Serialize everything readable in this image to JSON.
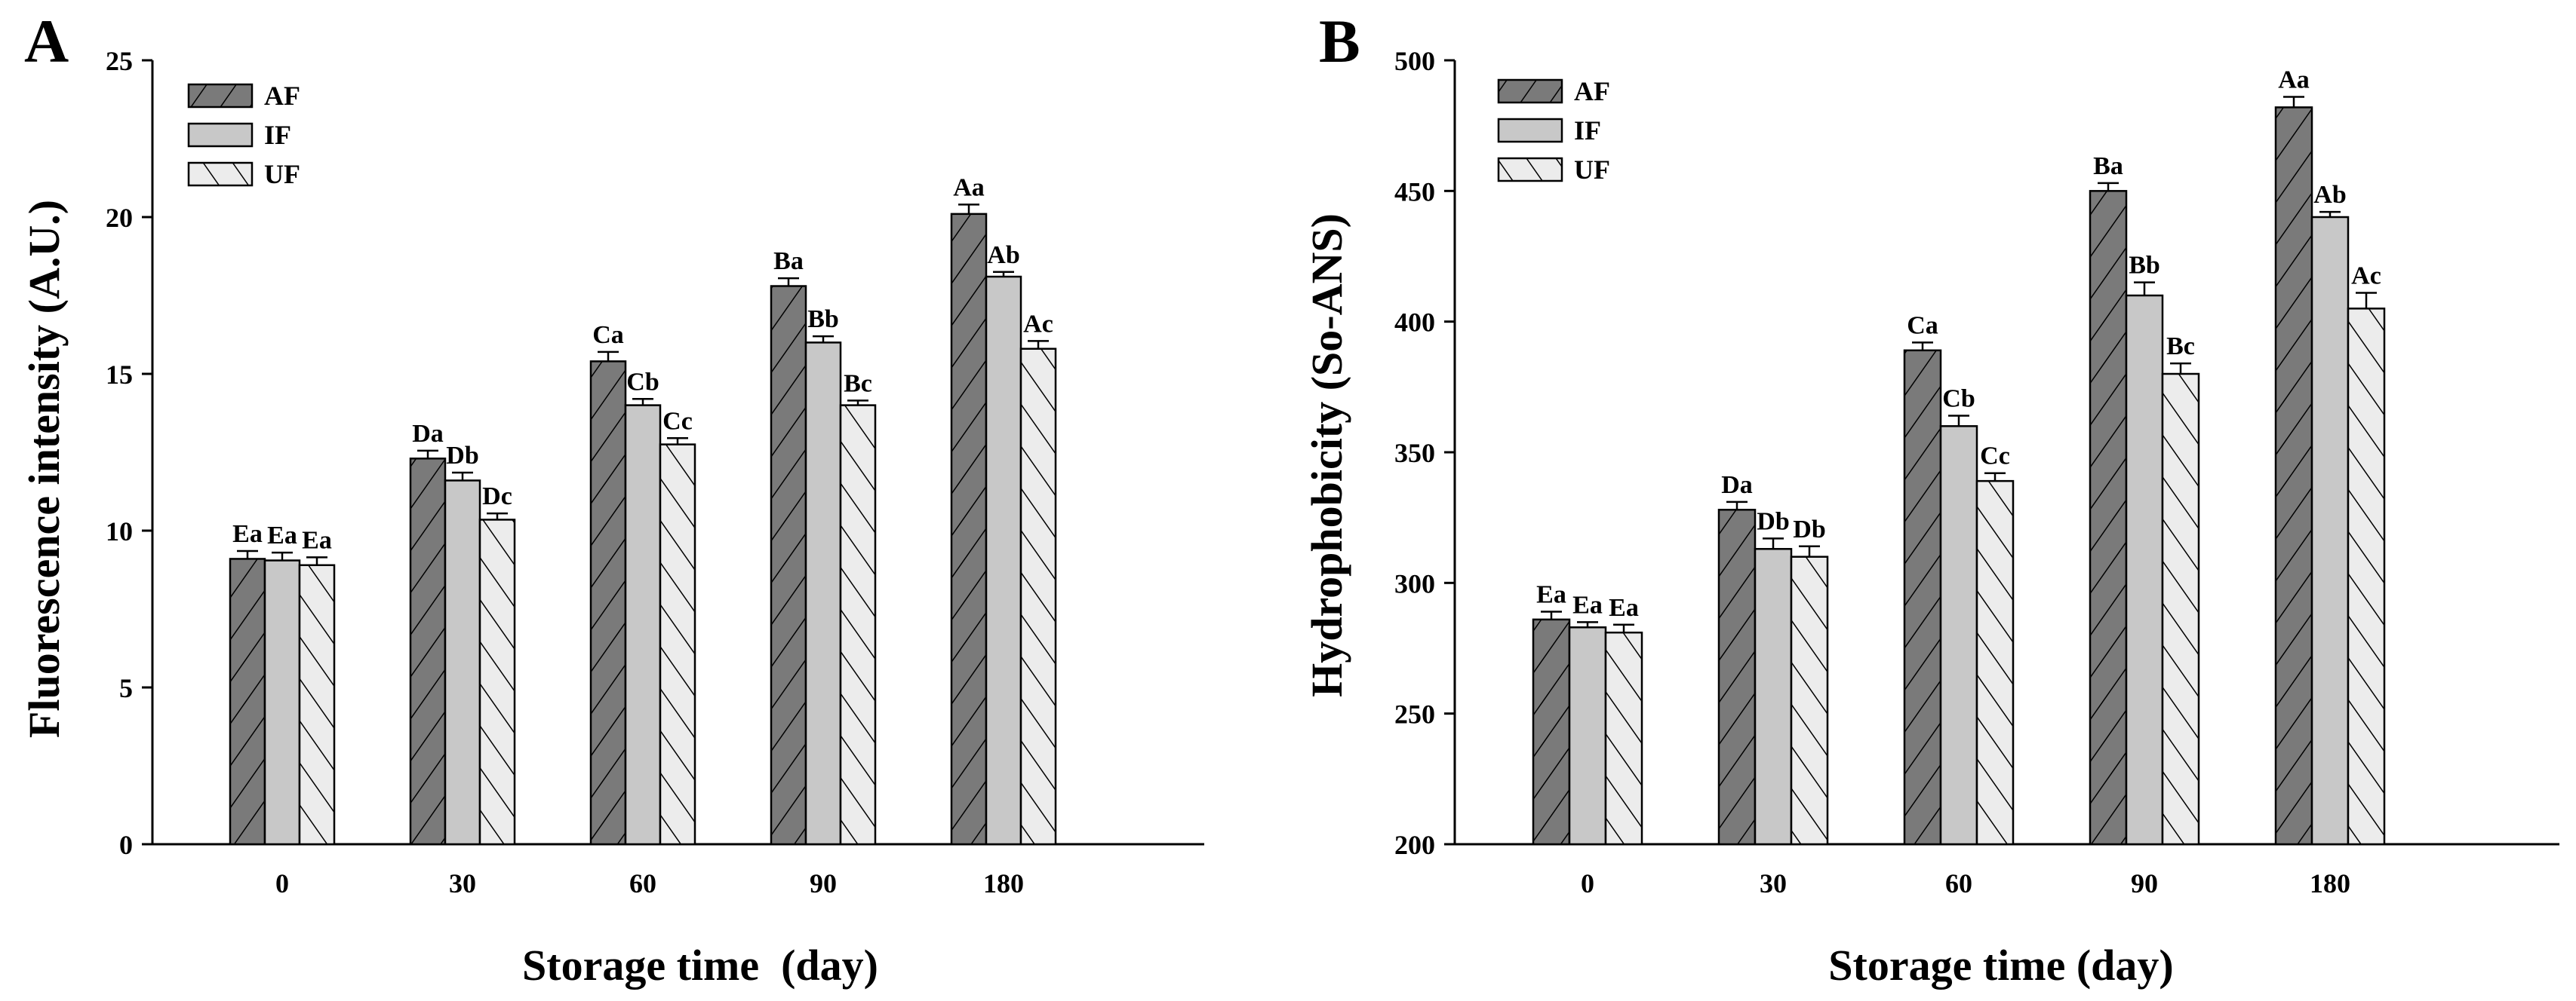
{
  "colors": {
    "AF": "#7a7a7a",
    "IF": "#c8c8c8",
    "UF": "#ececec",
    "hatch": "#000000"
  },
  "chart_data": [
    {
      "panel_label": "A",
      "type": "bar",
      "xlabel": "Storage time  (day)",
      "ylabel": "Fluorescence intensity (A.U.)",
      "ylim": [
        0,
        25
      ],
      "yticks": [
        "0",
        "5",
        "10",
        "15",
        "20",
        "25"
      ],
      "categories": [
        "0",
        "30",
        "60",
        "90",
        "180"
      ],
      "legend": [
        "AF",
        "IF",
        "UF"
      ],
      "legend_position": "top-left",
      "series": [
        {
          "name": "AF",
          "values": [
            9.1,
            12.3,
            15.4,
            17.8,
            20.1
          ],
          "errors": [
            0.25,
            0.25,
            0.3,
            0.25,
            0.3
          ],
          "labels": [
            "Ea",
            "Da",
            "Ca",
            "Ba",
            "Aa"
          ]
        },
        {
          "name": "IF",
          "values": [
            9.05,
            11.6,
            14.0,
            16.0,
            18.1
          ],
          "errors": [
            0.25,
            0.25,
            0.2,
            0.2,
            0.15
          ],
          "labels": [
            "Ea",
            "Db",
            "Cb",
            "Bb",
            "Ab"
          ]
        },
        {
          "name": "UF",
          "values": [
            8.9,
            10.35,
            12.75,
            14.0,
            15.8
          ],
          "errors": [
            0.25,
            0.2,
            0.2,
            0.15,
            0.25
          ],
          "labels": [
            "Ea",
            "Dc",
            "Cc",
            "Bc",
            "Ac"
          ]
        }
      ]
    },
    {
      "panel_label": "B",
      "type": "bar",
      "xlabel": "Storage time (day)",
      "ylabel": "Hydrophobicity (So-ANS)",
      "ylim": [
        200,
        500
      ],
      "yticks": [
        "200",
        "250",
        "300",
        "350",
        "400",
        "450",
        "500"
      ],
      "categories": [
        "0",
        "30",
        "60",
        "90",
        "180"
      ],
      "legend": [
        "AF",
        "IF",
        "UF"
      ],
      "legend_position": "top-left",
      "series": [
        {
          "name": "AF",
          "values": [
            286,
            328,
            389,
            450,
            482
          ],
          "errors": [
            3,
            3,
            3,
            3,
            4
          ],
          "labels": [
            "Ea",
            "Da",
            "Ca",
            "Ba",
            "Aa"
          ]
        },
        {
          "name": "IF",
          "values": [
            283,
            313,
            360,
            410,
            440
          ],
          "errors": [
            2,
            4,
            4,
            5,
            2
          ],
          "labels": [
            "Ea",
            "Db",
            "Cb",
            "Bb",
            "Ab"
          ]
        },
        {
          "name": "UF",
          "values": [
            281,
            310,
            339,
            380,
            405
          ],
          "errors": [
            3,
            4,
            3,
            4,
            6
          ],
          "labels": [
            "Ea",
            "Db",
            "Cc",
            "Bc",
            "Ac"
          ]
        }
      ]
    }
  ]
}
